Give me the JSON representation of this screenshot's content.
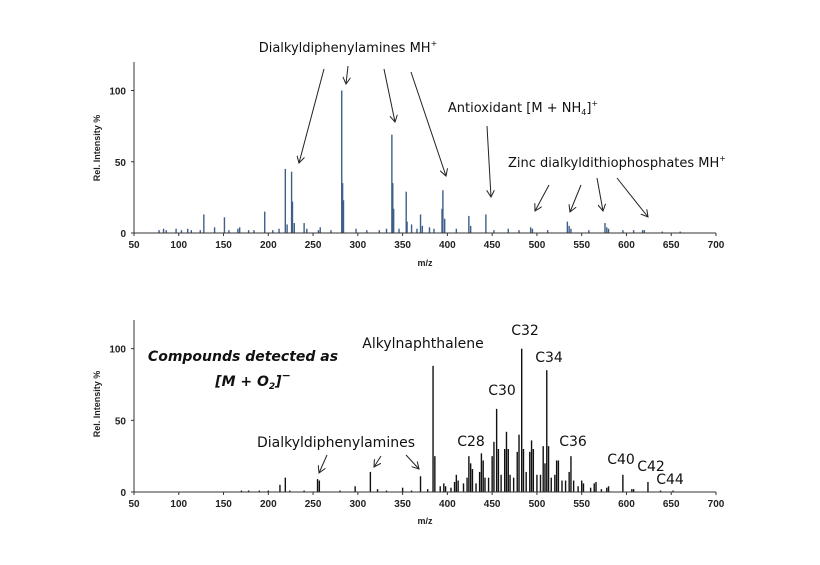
{
  "chart_data": [
    {
      "type": "bar",
      "title": "",
      "xlabel": "m/z",
      "ylabel": "Rel. Intensity %",
      "xlim": [
        50,
        700
      ],
      "ylim": [
        0,
        120
      ],
      "xticks": [
        "50",
        "100",
        "150",
        "200",
        "250",
        "300",
        "350",
        "400",
        "450",
        "500",
        "550",
        "600",
        "650",
        "700"
      ],
      "yticks": [
        "0",
        "50",
        "100"
      ],
      "color": "#3f5f8a",
      "grid": false,
      "peaks": [
        [
          78,
          2
        ],
        [
          83,
          3
        ],
        [
          86,
          2
        ],
        [
          97,
          3
        ],
        [
          103,
          2
        ],
        [
          110,
          3
        ],
        [
          114,
          2
        ],
        [
          124,
          2
        ],
        [
          128,
          13
        ],
        [
          140,
          4
        ],
        [
          151,
          11
        ],
        [
          156,
          2
        ],
        [
          166,
          3
        ],
        [
          168,
          4
        ],
        [
          178,
          2
        ],
        [
          184,
          2
        ],
        [
          196,
          15
        ],
        [
          205,
          2
        ],
        [
          212,
          3
        ],
        [
          219,
          45
        ],
        [
          221,
          6
        ],
        [
          226,
          43
        ],
        [
          227,
          22
        ],
        [
          229,
          7
        ],
        [
          240,
          7
        ],
        [
          243,
          3
        ],
        [
          256,
          2
        ],
        [
          258,
          4
        ],
        [
          270,
          2
        ],
        [
          282,
          100
        ],
        [
          283,
          35
        ],
        [
          284,
          23
        ],
        [
          298,
          3
        ],
        [
          310,
          2
        ],
        [
          324,
          2
        ],
        [
          332,
          3
        ],
        [
          338,
          69
        ],
        [
          339,
          35
        ],
        [
          340,
          17
        ],
        [
          346,
          3
        ],
        [
          354,
          29
        ],
        [
          355,
          8
        ],
        [
          360,
          6
        ],
        [
          366,
          3
        ],
        [
          370,
          13
        ],
        [
          372,
          5
        ],
        [
          380,
          4
        ],
        [
          385,
          3
        ],
        [
          394,
          17
        ],
        [
          395,
          30
        ],
        [
          397,
          10
        ],
        [
          410,
          3
        ],
        [
          424,
          12
        ],
        [
          426,
          5
        ],
        [
          443,
          13
        ],
        [
          452,
          2
        ],
        [
          468,
          3
        ],
        [
          480,
          2
        ],
        [
          493,
          4
        ],
        [
          495,
          3
        ],
        [
          512,
          2
        ],
        [
          534,
          8
        ],
        [
          536,
          5
        ],
        [
          538,
          3
        ],
        [
          558,
          2
        ],
        [
          576,
          7
        ],
        [
          578,
          4
        ],
        [
          580,
          3
        ],
        [
          596,
          2
        ],
        [
          608,
          2
        ],
        [
          618,
          2
        ],
        [
          620,
          2
        ],
        [
          640,
          1
        ],
        [
          660,
          1
        ]
      ],
      "annotations": [
        {
          "text": "Dialkyldiphenylamines MH",
          "sup": "+"
        },
        {
          "text": "Antioxidant [M + NH",
          "sub": "4",
          "tail": "]",
          "sup": "+"
        },
        {
          "text": "Zinc dialkyldithiophosphates MH",
          "sup": "+"
        }
      ]
    },
    {
      "type": "bar",
      "title": "",
      "xlabel": "m/z",
      "ylabel": "Rel. Intensity %",
      "xlim": [
        50,
        700
      ],
      "ylim": [
        0,
        120
      ],
      "xticks": [
        "50",
        "100",
        "150",
        "200",
        "250",
        "300",
        "350",
        "400",
        "450",
        "500",
        "550",
        "600",
        "650",
        "700"
      ],
      "yticks": [
        "0",
        "50",
        "100"
      ],
      "color": "#111111",
      "grid": false,
      "peaks": [
        [
          170,
          1
        ],
        [
          178,
          1
        ],
        [
          190,
          1
        ],
        [
          200,
          1
        ],
        [
          213,
          5
        ],
        [
          219,
          10
        ],
        [
          224,
          1
        ],
        [
          240,
          1
        ],
        [
          255,
          9
        ],
        [
          257,
          8
        ],
        [
          280,
          1
        ],
        [
          297,
          4
        ],
        [
          314,
          14
        ],
        [
          322,
          2
        ],
        [
          332,
          1
        ],
        [
          350,
          3
        ],
        [
          360,
          1
        ],
        [
          370,
          11
        ],
        [
          378,
          2
        ],
        [
          384,
          88
        ],
        [
          386,
          25
        ],
        [
          392,
          4
        ],
        [
          396,
          6
        ],
        [
          398,
          4
        ],
        [
          404,
          3
        ],
        [
          408,
          7
        ],
        [
          410,
          12
        ],
        [
          412,
          8
        ],
        [
          418,
          6
        ],
        [
          422,
          10
        ],
        [
          424,
          25
        ],
        [
          426,
          20
        ],
        [
          428,
          16
        ],
        [
          432,
          6
        ],
        [
          436,
          14
        ],
        [
          438,
          27
        ],
        [
          440,
          22
        ],
        [
          442,
          10
        ],
        [
          446,
          10
        ],
        [
          450,
          25
        ],
        [
          452,
          35
        ],
        [
          455,
          58
        ],
        [
          457,
          30
        ],
        [
          460,
          12
        ],
        [
          464,
          30
        ],
        [
          466,
          42
        ],
        [
          468,
          30
        ],
        [
          470,
          12
        ],
        [
          474,
          10
        ],
        [
          478,
          28
        ],
        [
          480,
          40
        ],
        [
          483,
          100
        ],
        [
          485,
          30
        ],
        [
          488,
          14
        ],
        [
          492,
          28
        ],
        [
          494,
          36
        ],
        [
          496,
          30
        ],
        [
          500,
          12
        ],
        [
          504,
          12
        ],
        [
          507,
          32
        ],
        [
          509,
          20
        ],
        [
          511,
          85
        ],
        [
          513,
          32
        ],
        [
          516,
          10
        ],
        [
          520,
          12
        ],
        [
          522,
          22
        ],
        [
          524,
          22
        ],
        [
          528,
          8
        ],
        [
          532,
          8
        ],
        [
          536,
          14
        ],
        [
          538,
          25
        ],
        [
          541,
          8
        ],
        [
          546,
          4
        ],
        [
          550,
          8
        ],
        [
          552,
          6
        ],
        [
          560,
          3
        ],
        [
          564,
          6
        ],
        [
          566,
          7
        ],
        [
          572,
          2
        ],
        [
          578,
          3
        ],
        [
          580,
          4
        ],
        [
          596,
          12
        ],
        [
          606,
          2
        ],
        [
          608,
          2
        ],
        [
          624,
          7
        ],
        [
          638,
          1
        ],
        [
          652,
          1
        ]
      ],
      "annotations": [
        {
          "text": "Alkylnaphthalene"
        },
        {
          "text": "C32"
        },
        {
          "text": "C34"
        },
        {
          "text": "C30"
        },
        {
          "text": "C28"
        },
        {
          "text": "C36"
        },
        {
          "text": "C40"
        },
        {
          "text": "C42"
        },
        {
          "text": "C44"
        },
        {
          "text": "Dialkyldiphenylamines"
        }
      ],
      "note": {
        "line1": "Compounds detected as",
        "line2": "[M + O",
        "sub": "2",
        "tail": "]",
        "sup": "−"
      }
    }
  ]
}
